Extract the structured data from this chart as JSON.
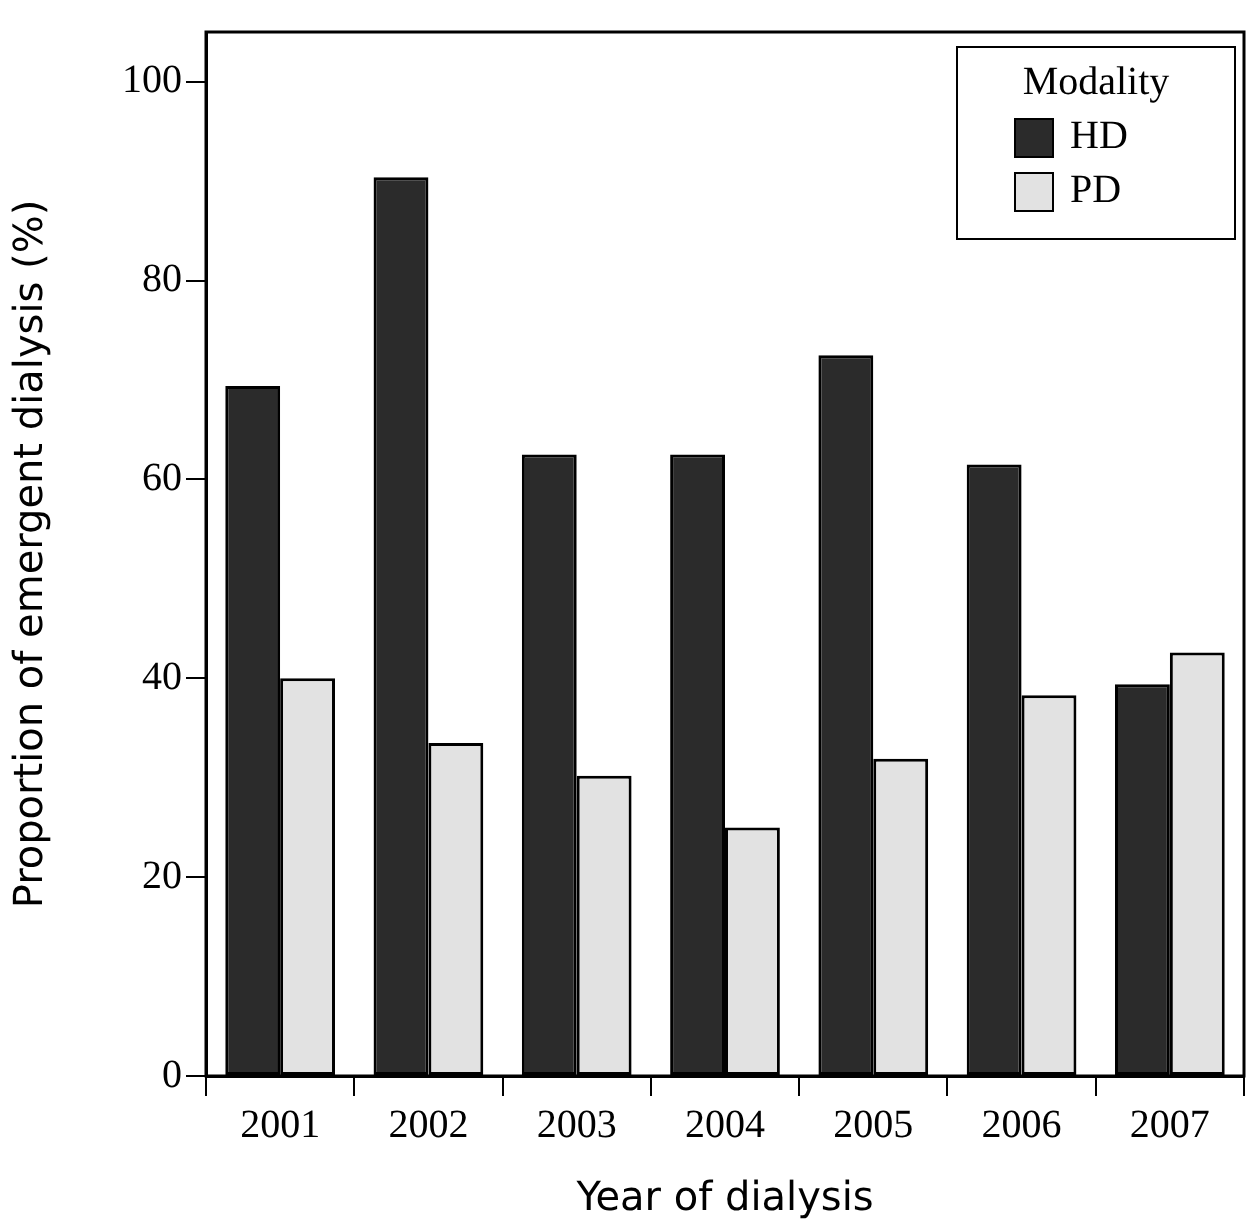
{
  "chart_data": {
    "type": "bar",
    "xlabel": "Year of dialysis",
    "ylabel": "Proportion of emergent dialysis (%)",
    "legend_title": "Modality",
    "legend": "top right",
    "grid": false,
    "categories": [
      "2001",
      "2002",
      "2003",
      "2004",
      "2005",
      "2006",
      "2007"
    ],
    "series": [
      {
        "name": "HD",
        "color": "#2b2b2b",
        "values": [
          69.4,
          90.4,
          62.5,
          62.5,
          72.5,
          61.5,
          39.4
        ]
      },
      {
        "name": "PD",
        "color": "#e2e2e2",
        "values": [
          40,
          33.5,
          30.2,
          25,
          31.9,
          38.3,
          42.6
        ]
      }
    ],
    "ylim": [
      0,
      105
    ],
    "yticks": [
      0,
      20,
      40,
      60,
      80,
      100
    ]
  }
}
